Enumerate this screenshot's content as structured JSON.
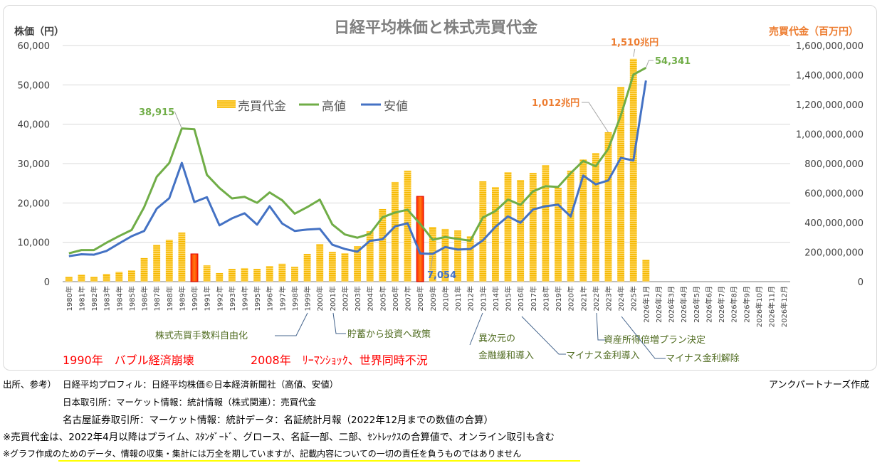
{
  "chart_data": {
    "type": "bar+line",
    "title": "日経平均株価と株式売買代金",
    "ylabel_left": "株価（円）",
    "ylabel_right": "売買代金（百万円）",
    "ylim_left": [
      0,
      60000
    ],
    "ylim_right": [
      0,
      1600000000
    ],
    "yticks_left": [
      "0",
      "10,000",
      "20,000",
      "30,000",
      "40,000",
      "50,000",
      "60,000"
    ],
    "yticks_right": [
      "0",
      "200,000,000",
      "400,000,000",
      "600,000,000",
      "800,000,000",
      "1,000,000,000",
      "1,200,000,000",
      "1,400,000,000",
      "1,600,000,000"
    ],
    "grid": true,
    "legend": {
      "position": "top-left-inside",
      "items": [
        "売買代金",
        "高値",
        "安値"
      ]
    },
    "categories": [
      "1980年",
      "1981年",
      "1982年",
      "1983年",
      "1984年",
      "1985年",
      "1986年",
      "1987年",
      "1988年",
      "1989年",
      "1990年",
      "1991年",
      "1992年",
      "1993年",
      "1994年",
      "1995年",
      "1996年",
      "1997年",
      "1998年",
      "1999年",
      "2000年",
      "2001年",
      "2002年",
      "2003年",
      "2004年",
      "2005年",
      "2006年",
      "2007年",
      "2008年",
      "2009年",
      "2010年",
      "2011年",
      "2012年",
      "2013年",
      "2014年",
      "2015年",
      "2016年",
      "2017年",
      "2018年",
      "2019年",
      "2020年",
      "2021年",
      "2022年",
      "2023年",
      "2024年",
      "2025年",
      "2026年1月",
      "2026年2月",
      "2026年3月",
      "2026年4月",
      "2026年5月",
      "2026年6月",
      "2026年7月",
      "2026年8月",
      "2026年9月",
      "2026年10月",
      "2026年11月",
      "2026年12月"
    ],
    "series": [
      {
        "name": "売買代金",
        "type": "bar",
        "axis": "right",
        "color": "#f5c242",
        "highlight": {
          "indices": [
            10,
            28
          ],
          "color": "#ff3300"
        },
        "values": [
          34000000,
          48000000,
          34000000,
          53000000,
          67000000,
          77000000,
          160000000,
          250000000,
          284000000,
          333000000,
          188000000,
          111000000,
          58000000,
          87000000,
          92000000,
          87000000,
          106000000,
          122000000,
          101000000,
          188000000,
          255000000,
          202000000,
          193000000,
          241000000,
          342000000,
          492000000,
          675000000,
          752000000,
          578000000,
          371000000,
          357000000,
          347000000,
          308000000,
          680000000,
          641000000,
          742000000,
          689000000,
          737000000,
          790000000,
          636000000,
          752000000,
          829000000,
          872000000,
          1012000000,
          1320000000,
          1510000000,
          149000000,
          null,
          null,
          null,
          null,
          null,
          null,
          null,
          null,
          null,
          null,
          null
        ]
      },
      {
        "name": "高値",
        "type": "line",
        "axis": "left",
        "color": "#70ad47",
        "values": [
          7188,
          8019,
          8026,
          9893,
          11577,
          13129,
          18936,
          26646,
          30159,
          38915,
          38712,
          27146,
          23801,
          21148,
          21552,
          20023,
          22666,
          20681,
          17264,
          18934,
          20833,
          14529,
          11979,
          11161,
          12163,
          16344,
          17563,
          18261,
          14691,
          10639,
          11339,
          10857,
          10395,
          16291,
          17935,
          20868,
          19494,
          22939,
          24270,
          24066,
          27568,
          30670,
          29332,
          33753,
          42224,
          52600,
          54341,
          null,
          null,
          null,
          null,
          null,
          null,
          null,
          null,
          null,
          null,
          null
        ]
      },
      {
        "name": "安値",
        "type": "line",
        "axis": "left",
        "color": "#4472c4",
        "values": [
          6475,
          6957,
          6849,
          7803,
          9703,
          11545,
          12881,
          18544,
          21217,
          30183,
          20221,
          21456,
          14309,
          16078,
          17369,
          14485,
          19161,
          14775,
          12879,
          13232,
          13423,
          9382,
          8303,
          7607,
          10365,
          10770,
          14045,
          14837,
          7162,
          7054,
          8796,
          8160,
          8295,
          10486,
          13910,
          16592,
          14952,
          18335,
          19155,
          19561,
          16552,
          26954,
          24717,
          25716,
          31458,
          30793,
          51100,
          null,
          null,
          null,
          null,
          null,
          null,
          null,
          null,
          null,
          null,
          null
        ]
      }
    ],
    "data_labels": [
      {
        "series": "高値",
        "index": 9,
        "text": "38,915",
        "color": "#70ad47"
      },
      {
        "series": "安値",
        "index": 29,
        "text": "7,054",
        "color": "#4472c4"
      },
      {
        "series": "売買代金",
        "index": 43,
        "text": "1,012兆円",
        "color": "#ed7d31"
      },
      {
        "series": "売買代金",
        "index": 45,
        "text": "1,510兆円",
        "color": "#ed7d31"
      },
      {
        "series": "高値",
        "index": 46,
        "text": "54,341",
        "color": "#70ad47"
      }
    ],
    "annotations": [
      {
        "text": "株式売買手数料自由化",
        "index": 19
      },
      {
        "text": "貯蓄から投資へ政策",
        "index": 21
      },
      {
        "text": "異次元の",
        "index": 33
      },
      {
        "text": "金融緩和導入",
        "index": 33
      },
      {
        "text": "マイナス金利導入",
        "index": 36
      },
      {
        "text": "資産所得倍増プラン決定",
        "index": 42
      },
      {
        "text": "マイナス金利解除",
        "index": 44
      }
    ],
    "events": [
      "1990年　バブル経済崩壊",
      "2008年　ﾘｰﾏﾝｼｮｯｸ、世界同時不況"
    ]
  },
  "credit": "アンクパートナーズ作成",
  "footer": {
    "source_label": "出所、参考）",
    "sources": [
      "日経平均プロフィル：日経平均株価©日本経済新聞社（高値、安値）",
      "日本取引所：マーケット情報：統計情報（株式関連）：売買代金",
      "名古屋証券取引所：マーケット情報：統計データ：名証統計月報（2022年12月までの数値の合算）"
    ],
    "notes": [
      "※売買代金は、2022年4月以降はプライム、ｽﾀﾝﾀﾞｰﾄﾞ、グロース、名証一部、二部、ｾﾝﾄﾚｯｸｽの合算値で、オンライン取引も含む",
      "※グラフ作成のためのデータ、情報の収集・集計には万全を期していますが、記載内容についての一切の責任を負うものではありません"
    ]
  }
}
